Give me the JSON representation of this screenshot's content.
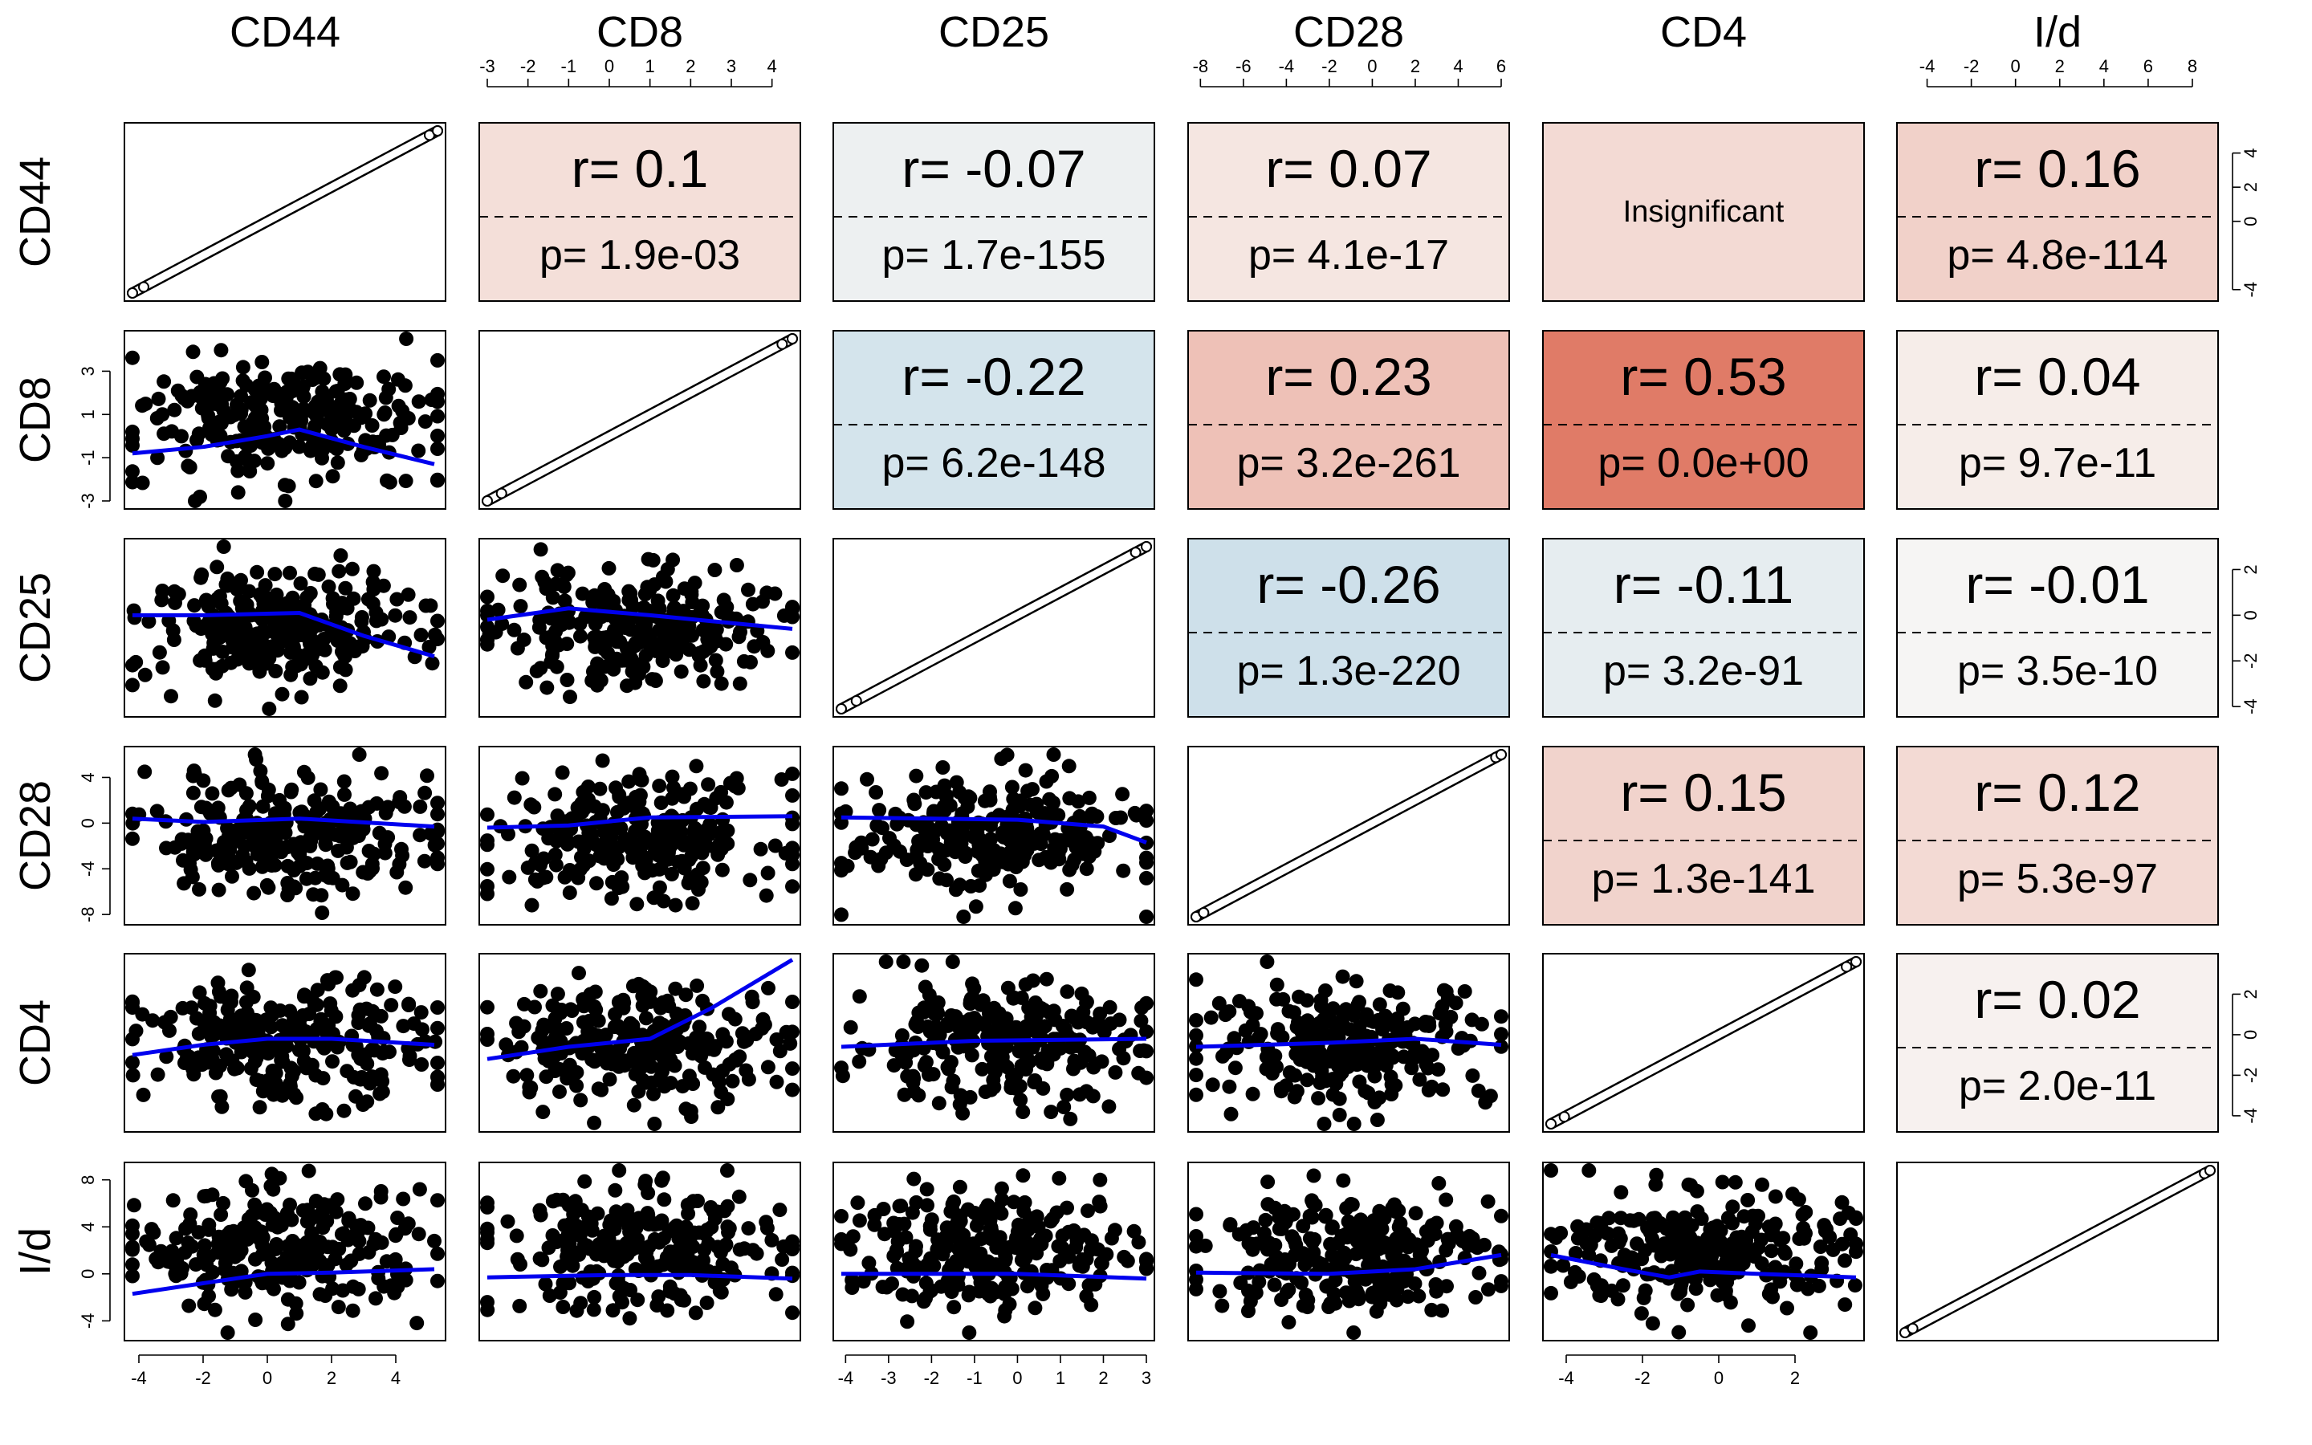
{
  "chart_data": {
    "type": "scatter",
    "variables": [
      "CD44",
      "CD8",
      "CD25",
      "CD28",
      "CD4",
      "I/d"
    ],
    "axis_ticks": {
      "CD44": [
        -4,
        -2,
        0,
        2,
        4
      ],
      "CD8": [
        -3,
        -2,
        -1,
        0,
        1,
        2,
        3,
        4
      ],
      "CD25": [
        -4,
        -3,
        -2,
        -1,
        0,
        1,
        2,
        3
      ],
      "CD28": [
        -8,
        -6,
        -4,
        -2,
        0,
        2,
        4,
        6
      ],
      "CD4": [
        -4,
        -2,
        0,
        2
      ],
      "I/d": [
        -4,
        -2,
        0,
        2,
        4,
        6,
        8
      ]
    },
    "row_axis_ticks": {
      "CD44": [
        "-4",
        "0",
        "2",
        "4"
      ],
      "CD8": [
        "-3",
        "-1",
        "1",
        "3"
      ],
      "CD25": [
        "-4",
        "-2",
        "0",
        "2"
      ],
      "CD28": [
        "-8",
        "-4",
        "0",
        "4"
      ],
      "CD4": [
        "-4",
        "-2",
        "0",
        "2"
      ],
      "I/d": [
        "-4",
        "0",
        "4",
        "8"
      ]
    },
    "ranges": {
      "CD44": [
        -4.2,
        5.3
      ],
      "CD8": [
        -3.0,
        4.5
      ],
      "CD25": [
        -4.1,
        3.0
      ],
      "CD28": [
        -8.2,
        6.0
      ],
      "CD4": [
        -4.4,
        3.6
      ],
      "I/d": [
        -5.0,
        8.8
      ]
    },
    "correlations": [
      {
        "row": "CD44",
        "col": "CD8",
        "r": "r= 0.1",
        "p": "p= 1.9e-03",
        "r_value": 0.1,
        "significant": true
      },
      {
        "row": "CD44",
        "col": "CD25",
        "r": "r= -0.07",
        "p": "p= 1.7e-155",
        "r_value": -0.07,
        "significant": true
      },
      {
        "row": "CD44",
        "col": "CD28",
        "r": "r= 0.07",
        "p": "p= 4.1e-17",
        "r_value": 0.07,
        "significant": true
      },
      {
        "row": "CD44",
        "col": "CD4",
        "label": "Insignificant",
        "r_value": 0.12,
        "significant": false
      },
      {
        "row": "CD44",
        "col": "I/d",
        "r": "r= 0.16",
        "p": "p= 4.8e-114",
        "r_value": 0.16,
        "significant": true
      },
      {
        "row": "CD8",
        "col": "CD25",
        "r": "r= -0.22",
        "p": "p= 6.2e-148",
        "r_value": -0.22,
        "significant": true
      },
      {
        "row": "CD8",
        "col": "CD28",
        "r": "r= 0.23",
        "p": "p= 3.2e-261",
        "r_value": 0.23,
        "significant": true
      },
      {
        "row": "CD8",
        "col": "CD4",
        "r": "r= 0.53",
        "p": "p= 0.0e+00",
        "r_value": 0.53,
        "significant": true
      },
      {
        "row": "CD8",
        "col": "I/d",
        "r": "r= 0.04",
        "p": "p= 9.7e-11",
        "r_value": 0.04,
        "significant": true
      },
      {
        "row": "CD25",
        "col": "CD28",
        "r": "r= -0.26",
        "p": "p= 1.3e-220",
        "r_value": -0.26,
        "significant": true
      },
      {
        "row": "CD25",
        "col": "CD4",
        "r": "r= -0.11",
        "p": "p= 3.2e-91",
        "r_value": -0.11,
        "significant": true
      },
      {
        "row": "CD25",
        "col": "I/d",
        "r": "r= -0.01",
        "p": "p= 3.5e-10",
        "r_value": -0.01,
        "significant": true
      },
      {
        "row": "CD28",
        "col": "CD4",
        "r": "r= 0.15",
        "p": "p= 1.3e-141",
        "r_value": 0.15,
        "significant": true
      },
      {
        "row": "CD28",
        "col": "I/d",
        "r": "r= 0.12",
        "p": "p= 5.3e-97",
        "r_value": 0.12,
        "significant": true
      },
      {
        "row": "CD4",
        "col": "I/d",
        "r": "r= 0.02",
        "p": "p= 2.0e-11",
        "r_value": 0.02,
        "significant": true
      }
    ],
    "smooth_lines": [
      {
        "row": "CD8",
        "col": "CD44",
        "points": [
          [
            -4.2,
            -0.8
          ],
          [
            -2,
            -0.5
          ],
          [
            0,
            0.0
          ],
          [
            1,
            0.3
          ],
          [
            3,
            -0.5
          ],
          [
            5.2,
            -1.3
          ]
        ]
      },
      {
        "row": "CD25",
        "col": "CD44",
        "points": [
          [
            -4.2,
            0.0
          ],
          [
            -2,
            0.0
          ],
          [
            1,
            0.1
          ],
          [
            3,
            -0.9
          ],
          [
            5.2,
            -1.8
          ]
        ]
      },
      {
        "row": "CD25",
        "col": "CD8",
        "points": [
          [
            -3.0,
            -0.2
          ],
          [
            -1,
            0.3
          ],
          [
            1,
            0.0
          ],
          [
            4.5,
            -0.6
          ]
        ]
      },
      {
        "row": "CD28",
        "col": "CD44",
        "points": [
          [
            -4.2,
            0.4
          ],
          [
            -2,
            0.1
          ],
          [
            1,
            0.4
          ],
          [
            5.2,
            -0.3
          ]
        ]
      },
      {
        "row": "CD28",
        "col": "CD8",
        "points": [
          [
            -3.0,
            -0.4
          ],
          [
            -1,
            -0.2
          ],
          [
            1,
            0.5
          ],
          [
            4.5,
            0.6
          ]
        ]
      },
      {
        "row": "CD28",
        "col": "CD25",
        "points": [
          [
            -4.1,
            0.5
          ],
          [
            0,
            0.3
          ],
          [
            2,
            -0.3
          ],
          [
            3.0,
            -1.7
          ]
        ]
      },
      {
        "row": "CD4",
        "col": "CD44",
        "points": [
          [
            -4.2,
            -1.0
          ],
          [
            -2,
            -0.5
          ],
          [
            0,
            -0.2
          ],
          [
            2,
            -0.2
          ],
          [
            5.2,
            -0.5
          ]
        ]
      },
      {
        "row": "CD4",
        "col": "CD8",
        "points": [
          [
            -3.0,
            -1.2
          ],
          [
            -1,
            -0.6
          ],
          [
            1,
            -0.2
          ],
          [
            2.5,
            1.3
          ],
          [
            4.5,
            3.7
          ]
        ]
      },
      {
        "row": "CD4",
        "col": "CD25",
        "points": [
          [
            -4.1,
            -0.6
          ],
          [
            -1,
            -0.3
          ],
          [
            3.0,
            -0.2
          ]
        ]
      },
      {
        "row": "CD4",
        "col": "CD28",
        "points": [
          [
            -8.2,
            -0.6
          ],
          [
            -2,
            -0.4
          ],
          [
            2,
            -0.2
          ],
          [
            6.0,
            -0.5
          ]
        ]
      },
      {
        "row": "I/d",
        "col": "CD44",
        "points": [
          [
            -4.2,
            -1.7
          ],
          [
            -2,
            -0.8
          ],
          [
            0,
            0.0
          ],
          [
            2,
            0.1
          ],
          [
            5.2,
            0.4
          ]
        ]
      },
      {
        "row": "I/d",
        "col": "CD8",
        "points": [
          [
            -3.0,
            -0.3
          ],
          [
            0,
            -0.1
          ],
          [
            2,
            -0.1
          ],
          [
            4.5,
            -0.4
          ]
        ]
      },
      {
        "row": "I/d",
        "col": "CD25",
        "points": [
          [
            -4.1,
            0.0
          ],
          [
            0,
            0.0
          ],
          [
            3.0,
            -0.4
          ]
        ]
      },
      {
        "row": "I/d",
        "col": "CD28",
        "points": [
          [
            -8.2,
            0.1
          ],
          [
            -2,
            0.0
          ],
          [
            2,
            0.4
          ],
          [
            6.0,
            1.6
          ]
        ]
      },
      {
        "row": "I/d",
        "col": "CD4",
        "points": [
          [
            -4.4,
            1.6
          ],
          [
            -2.5,
            0.4
          ],
          [
            -1.3,
            -0.3
          ],
          [
            -0.5,
            0.2
          ],
          [
            1,
            0.0
          ],
          [
            3.6,
            -0.3
          ]
        ]
      }
    ]
  }
}
